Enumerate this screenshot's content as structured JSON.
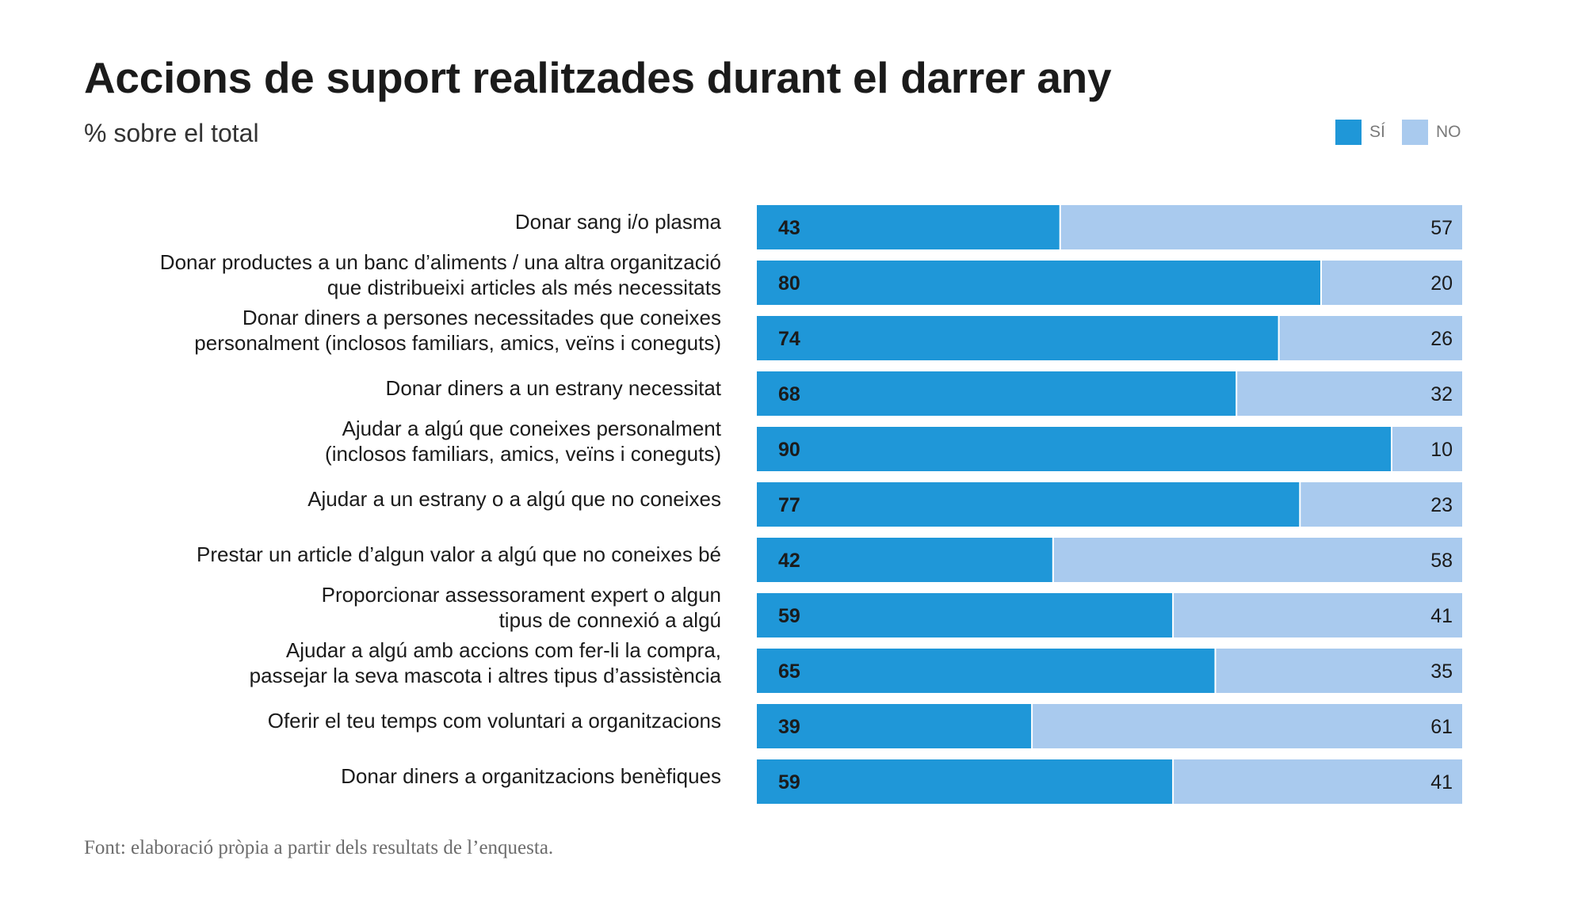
{
  "title": "Accions de suport realitzades durant el darrer any",
  "subtitle": "% sobre el total",
  "source": "Font: elaboració pròpia a partir dels resultats de l’enquesta.",
  "colors": {
    "yes": "#1f97d8",
    "no": "#a9caee"
  },
  "chart_data": {
    "type": "bar",
    "orientation": "horizontal",
    "stacked": true,
    "xlim": [
      0,
      100
    ],
    "legend": "top-right",
    "categories": [
      [
        "Donar sang i/o plasma"
      ],
      [
        "Donar productes a un banc d’aliments / una altra organització",
        "que distribueixi articles als més necessitats"
      ],
      [
        "Donar diners a persones necessitades que coneixes",
        "personalment (inclosos familiars, amics, veïns i coneguts)"
      ],
      [
        "Donar diners a un estrany necessitat"
      ],
      [
        "Ajudar a algú que coneixes personalment",
        "(inclosos familiars, amics, veïns i coneguts)"
      ],
      [
        "Ajudar a un estrany o a algú que no coneixes"
      ],
      [
        "Prestar un article d’algun valor a algú que no coneixes bé"
      ],
      [
        "Proporcionar assessorament expert o algun",
        "tipus de connexió a algú"
      ],
      [
        "Ajudar a algú amb accions com fer-li la compra,",
        "passejar la seva mascota i altres tipus d’assistència"
      ],
      [
        "Oferir el teu temps com voluntari a organitzacions"
      ],
      [
        "Donar diners a organitzacions benèfiques"
      ]
    ],
    "series": [
      {
        "name": "SÍ",
        "values": [
          43,
          80,
          74,
          68,
          90,
          77,
          42,
          59,
          65,
          39,
          59
        ]
      },
      {
        "name": "NO",
        "values": [
          57,
          20,
          26,
          32,
          10,
          23,
          58,
          41,
          35,
          61,
          41
        ]
      }
    ]
  }
}
